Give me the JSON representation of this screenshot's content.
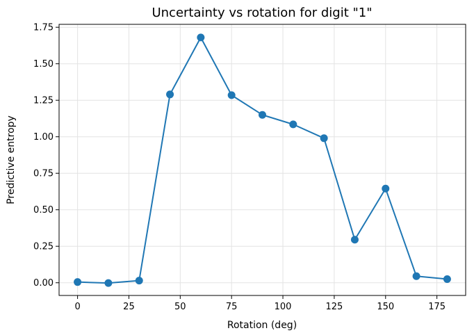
{
  "chart_data": {
    "type": "line",
    "title": "Uncertainty vs rotation for digit \"1\"",
    "xlabel": "Rotation (deg)",
    "ylabel": "Predictive entropy",
    "x": [
      0,
      15,
      30,
      45,
      60,
      75,
      90,
      105,
      120,
      135,
      150,
      165,
      180
    ],
    "series": [
      {
        "values": [
          0.005,
          -0.002,
          0.015,
          1.29,
          1.68,
          1.285,
          1.15,
          1.085,
          0.99,
          0.295,
          0.645,
          0.045,
          0.025
        ]
      }
    ],
    "xlim": [
      -9,
      189
    ],
    "ylim": [
      -0.087,
      1.77
    ],
    "xticks": [
      0,
      25,
      50,
      75,
      100,
      125,
      150,
      175
    ],
    "xtick_labels": [
      "0",
      "25",
      "50",
      "75",
      "100",
      "125",
      "150",
      "175"
    ],
    "yticks": [
      0.0,
      0.25,
      0.5,
      0.75,
      1.0,
      1.25,
      1.5,
      1.75
    ],
    "ytick_labels": [
      "0.00",
      "0.25",
      "0.50",
      "0.75",
      "1.00",
      "1.25",
      "1.50",
      "1.75"
    ],
    "grid": true,
    "legend": "none",
    "colors": {
      "line": "#1f77b4",
      "grid": "#e3e3e3",
      "axes": "#000000"
    }
  }
}
